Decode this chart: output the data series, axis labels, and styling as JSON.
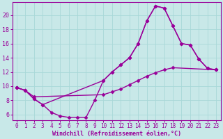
{
  "bg_color": "#c8e8e8",
  "line_color": "#990099",
  "marker": "D",
  "markersize": 2.5,
  "linewidth": 1.0,
  "xlabel": "Windchill (Refroidissement éolien,°C)",
  "xlabel_fontsize": 6.0,
  "ylabel_ticks": [
    6,
    8,
    10,
    12,
    14,
    16,
    18,
    20
  ],
  "xlim": [
    -0.5,
    23.5
  ],
  "ylim": [
    5.2,
    21.8
  ],
  "xtick_labels": [
    "0",
    "1",
    "2",
    "3",
    "4",
    "5",
    "6",
    "7",
    "8",
    "9",
    "10",
    "11",
    "12",
    "13",
    "14",
    "15",
    "16",
    "17",
    "18",
    "19",
    "20",
    "21",
    "22",
    "23"
  ],
  "curve1_x": [
    0,
    1,
    2,
    3,
    4,
    5,
    6,
    7,
    8,
    9,
    10,
    11,
    12,
    13,
    14,
    15,
    16,
    17,
    18,
    19,
    20,
    21,
    22,
    23
  ],
  "curve1_y": [
    9.8,
    9.4,
    8.2,
    7.4,
    6.3,
    5.8,
    5.6,
    5.6,
    5.6,
    8.0,
    10.8,
    12.0,
    13.0,
    14.0,
    16.0,
    19.2,
    21.3,
    21.0,
    18.5,
    16.0,
    15.8,
    13.8,
    12.5,
    12.3
  ],
  "curve2_x": [
    0,
    1,
    2,
    3,
    10,
    11,
    12,
    13,
    14,
    15,
    16,
    17,
    18,
    19,
    20,
    21,
    22,
    23
  ],
  "curve2_y": [
    9.8,
    9.4,
    8.2,
    7.4,
    10.8,
    12.0,
    13.0,
    14.0,
    16.0,
    19.2,
    21.3,
    21.0,
    18.5,
    16.0,
    15.8,
    13.8,
    12.5,
    12.3
  ],
  "curve3_x": [
    0,
    1,
    2,
    10,
    11,
    12,
    13,
    14,
    15,
    16,
    17,
    18,
    23
  ],
  "curve3_y": [
    9.8,
    9.4,
    8.5,
    8.8,
    9.2,
    9.6,
    10.2,
    10.8,
    11.4,
    11.9,
    12.3,
    12.6,
    12.3
  ],
  "grid_color": "#a8d8d8",
  "tick_fontsize": 5.5,
  "ytick_fontsize": 6.0
}
